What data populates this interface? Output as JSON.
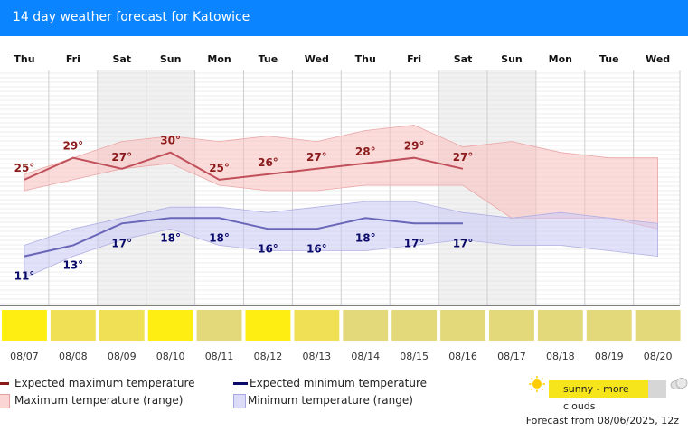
{
  "header": {
    "title": "14 day weather forecast for Katowice"
  },
  "chart_data": {
    "type": "line",
    "categories": [
      "Thu",
      "Fri",
      "Sat",
      "Sun",
      "Mon",
      "Tue",
      "Wed",
      "Thu",
      "Fri",
      "Sat",
      "Sun",
      "Mon",
      "Tue",
      "Wed"
    ],
    "dates": [
      "08/07",
      "08/08",
      "08/09",
      "08/10",
      "08/11",
      "08/12",
      "08/13",
      "08/14",
      "08/15",
      "08/16",
      "08/17",
      "08/18",
      "08/19",
      "08/20"
    ],
    "series": [
      {
        "name": "Expected maximum temperature",
        "values": [
          25,
          29,
          27,
          30,
          25,
          26,
          27,
          28,
          29,
          27,
          null,
          null,
          null,
          null
        ],
        "color": "#c0505a"
      },
      {
        "name": "Expected minimum temperature",
        "values": [
          11,
          13,
          17,
          18,
          18,
          16,
          16,
          18,
          17,
          17,
          null,
          null,
          null,
          null
        ],
        "color": "#6a66b8"
      }
    ],
    "max_range": {
      "name": "Maximum temperature (range)",
      "low": [
        23,
        25,
        27,
        28,
        24,
        23,
        23,
        24,
        24,
        24,
        18,
        18,
        18,
        16
      ],
      "high": [
        26,
        29,
        32,
        33,
        32,
        33,
        32,
        34,
        35,
        31,
        32,
        30,
        29,
        29
      ]
    },
    "min_range": {
      "name": "Minimum temperature (range)",
      "low": [
        7,
        11,
        14,
        16,
        13,
        12,
        12,
        12,
        13,
        14,
        13,
        13,
        12,
        11
      ],
      "high": [
        13,
        16,
        18,
        20,
        20,
        19,
        20,
        21,
        21,
        19,
        18,
        19,
        18,
        17
      ]
    },
    "labels_max": [
      "25°",
      "29°",
      "27°",
      "30°",
      "25°",
      "26°",
      "27°",
      "28°",
      "29°",
      "27°"
    ],
    "labels_min": [
      "11°",
      "13°",
      "17°",
      "18°",
      "18°",
      "16°",
      "16°",
      "18°",
      "17°",
      "17°"
    ],
    "weekend_indices": [
      2,
      3,
      9,
      10
    ],
    "weather": [
      "sunny",
      "sunny-clouds",
      "sunny-clouds",
      "sunny",
      "clouds",
      "sunny",
      "sunny-clouds",
      "clouds",
      "clouds",
      "clouds",
      "clouds",
      "clouds",
      "clouds",
      "clouds"
    ],
    "weather_colors": {
      "sunny": "#ffee11",
      "sunny-clouds": "#efe055",
      "clouds": "#e3d97a"
    },
    "ylim": [
      2,
      45
    ],
    "grid": true
  },
  "legend": {
    "expected_max": "Expected maximum temperature",
    "max_range": "Maximum temperature (range)",
    "expected_min": "Expected minimum temperature",
    "min_range": "Minimum temperature (range)",
    "weather_key": "sunny - more clouds",
    "max_color": "#8b1a1a",
    "min_color": "#0a0a6b"
  },
  "footer": {
    "forecast_from": "Forecast from 08/06/2025, 12z"
  }
}
